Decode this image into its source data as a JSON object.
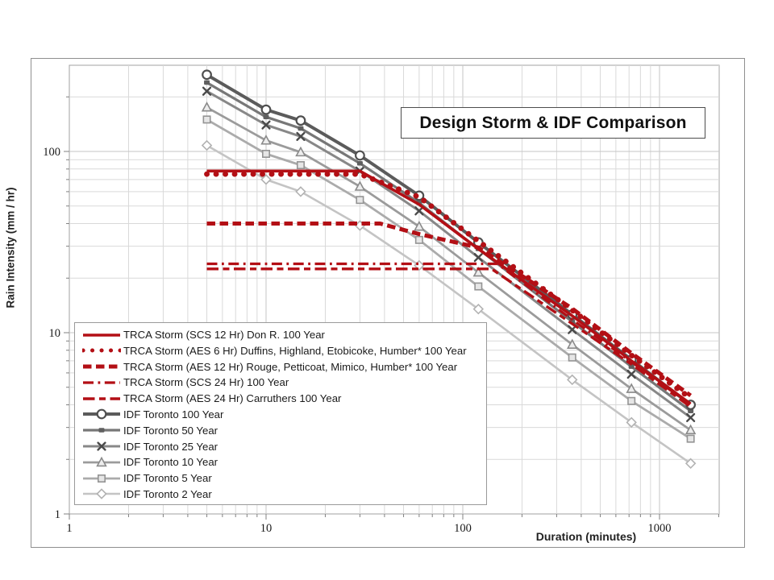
{
  "chart_data": {
    "type": "line",
    "title": "Design Storm & IDF Comparison",
    "xlabel": "Duration (minutes)",
    "ylabel": "Rain Intensity (mm / hr)",
    "x_scale": "log",
    "y_scale": "log",
    "xlim": [
      1,
      2000
    ],
    "ylim": [
      1,
      300
    ],
    "x_ticks": [
      1,
      10,
      100,
      1000
    ],
    "y_ticks": [
      1,
      10,
      100
    ],
    "grid": "both-minor",
    "legend_position": "lower-left",
    "colors": {
      "trca_red": "#b30f15",
      "idf_100": "#5b5b5b",
      "idf_50": "#777777",
      "idf_25": "#888888",
      "idf_10": "#9b9b9b",
      "idf_5": "#ababab",
      "idf_2": "#c4c4c4",
      "gridline": "#d9d9d9",
      "axis": "#a0a0a0"
    },
    "series": [
      {
        "name": "TRCA Storm (SCS 12 Hr) Don R. 100 Year",
        "color": "#b30f15",
        "style": "solid",
        "width": 3.6,
        "marker": "none",
        "points": [
          [
            5,
            78
          ],
          [
            30,
            78
          ],
          [
            60,
            51
          ],
          [
            120,
            29
          ],
          [
            360,
            12.4
          ],
          [
            720,
            7.0
          ],
          [
            1440,
            4.05
          ]
        ]
      },
      {
        "name": "TRCA Storm (AES 6 Hr) Duffins, Highland, Etobicoke, Humber* 100 Year",
        "color": "#b30f15",
        "style": "dotted",
        "width": 6.8,
        "marker": "none",
        "points": [
          [
            5,
            75
          ],
          [
            30,
            75
          ],
          [
            60,
            56
          ],
          [
            120,
            32
          ],
          [
            360,
            13.3
          ],
          [
            720,
            7.5
          ],
          [
            1440,
            4.35
          ]
        ]
      },
      {
        "name": "TRCA Storm (AES 12 Hr) Rouge, Petticoat, Mimico, Humber* 100 Year",
        "color": "#b30f15",
        "style": "dashed",
        "width": 5,
        "marker": "none",
        "points": [
          [
            5,
            40
          ],
          [
            38,
            40
          ],
          [
            60,
            35
          ],
          [
            120,
            29.5
          ],
          [
            360,
            13.6
          ],
          [
            720,
            7.7
          ],
          [
            1440,
            4.5
          ]
        ]
      },
      {
        "name": "TRCA Storm (SCS 24 Hr) 100 Year",
        "color": "#b30f15",
        "style": "dashdot",
        "width": 3.2,
        "marker": "none",
        "points": [
          [
            5,
            24
          ],
          [
            150,
            24
          ],
          [
            360,
            11.8
          ],
          [
            720,
            6.9
          ],
          [
            1440,
            4.0
          ]
        ]
      },
      {
        "name": "TRCA Storm (AES 24 Hr)  Carruthers 100 Year",
        "color": "#b30f15",
        "style": "longdash",
        "width": 3.4,
        "marker": "none",
        "points": [
          [
            5,
            22.5
          ],
          [
            140,
            22.5
          ],
          [
            360,
            11.2
          ],
          [
            720,
            6.7
          ],
          [
            1440,
            3.9
          ]
        ]
      },
      {
        "name": "IDF Toronto 100 Year",
        "color": "#5b5b5b",
        "style": "solid",
        "width": 4,
        "marker": "circle",
        "points": [
          [
            5,
            265
          ],
          [
            10,
            170
          ],
          [
            15,
            148
          ],
          [
            30,
            95
          ],
          [
            60,
            57
          ],
          [
            120,
            31.5
          ],
          [
            360,
            12.6
          ],
          [
            720,
            7.1
          ],
          [
            1440,
            4.0
          ]
        ]
      },
      {
        "name": "IDF Toronto 50 Year",
        "color": "#777777",
        "style": "solid",
        "width": 3.2,
        "marker": "fsquare",
        "points": [
          [
            5,
            240
          ],
          [
            10,
            155
          ],
          [
            15,
            134
          ],
          [
            30,
            86
          ],
          [
            60,
            52
          ],
          [
            120,
            29
          ],
          [
            360,
            11.5
          ],
          [
            720,
            6.5
          ],
          [
            1440,
            3.7
          ]
        ]
      },
      {
        "name": "IDF Toronto 25 Year",
        "color": "#888888",
        "style": "solid",
        "width": 3,
        "marker": "xcross",
        "points": [
          [
            5,
            215
          ],
          [
            10,
            140
          ],
          [
            15,
            121
          ],
          [
            30,
            78
          ],
          [
            60,
            47
          ],
          [
            120,
            26
          ],
          [
            360,
            10.4
          ],
          [
            720,
            5.9
          ],
          [
            1440,
            3.4
          ]
        ]
      },
      {
        "name": "IDF Toronto 10 Year",
        "color": "#9b9b9b",
        "style": "solid",
        "width": 2.8,
        "marker": "triangle",
        "points": [
          [
            5,
            175
          ],
          [
            10,
            115
          ],
          [
            15,
            99
          ],
          [
            30,
            64
          ],
          [
            60,
            38.5
          ],
          [
            120,
            21.5
          ],
          [
            360,
            8.6
          ],
          [
            720,
            4.9
          ],
          [
            1440,
            2.9
          ]
        ]
      },
      {
        "name": "IDF Toronto 5 Year",
        "color": "#ababab",
        "style": "solid",
        "width": 2.8,
        "marker": "square",
        "points": [
          [
            5,
            150
          ],
          [
            10,
            97
          ],
          [
            15,
            84
          ],
          [
            30,
            54
          ],
          [
            60,
            32.5
          ],
          [
            120,
            18
          ],
          [
            360,
            7.3
          ],
          [
            720,
            4.2
          ],
          [
            1440,
            2.6
          ]
        ]
      },
      {
        "name": "IDF Toronto 2 Year",
        "color": "#c4c4c4",
        "style": "solid",
        "width": 2.6,
        "marker": "diamond",
        "points": [
          [
            5,
            108
          ],
          [
            10,
            70
          ],
          [
            15,
            60
          ],
          [
            30,
            39
          ],
          [
            60,
            23.5
          ],
          [
            120,
            13.5
          ],
          [
            360,
            5.5
          ],
          [
            720,
            3.2
          ],
          [
            1440,
            1.9
          ]
        ]
      }
    ]
  }
}
